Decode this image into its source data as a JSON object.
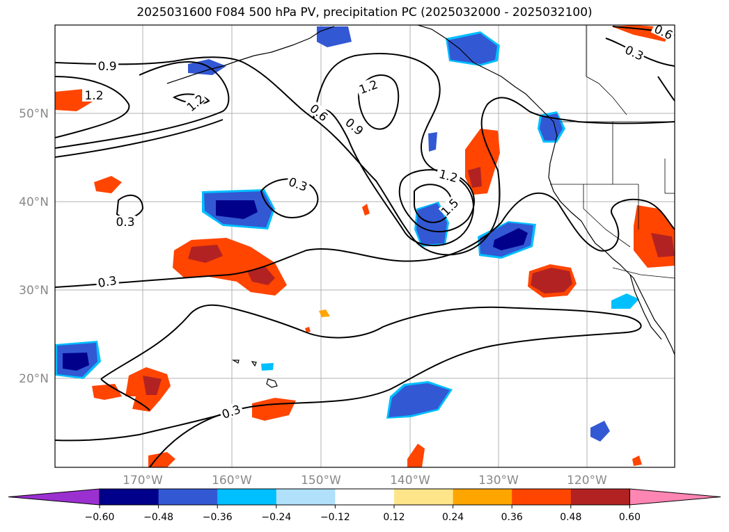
{
  "title": "2025031600 F084 500 hPa PV, precipitation PC (2025032000 - 2025032100)",
  "lat_ticks": [
    "50°N",
    "40°N",
    "30°N",
    "20°N"
  ],
  "lon_ticks": [
    "170°W",
    "160°W",
    "150°W",
    "140°W",
    "130°W",
    "120°W"
  ],
  "colorbar": {
    "ticks": [
      "−0.60",
      "−0.48",
      "−0.36",
      "−0.24",
      "−0.12",
      "0.12",
      "0.24",
      "0.36",
      "0.48",
      "0.60"
    ],
    "colors": [
      "#9b30d0",
      "#00008b",
      "#3358d4",
      "#00bfff",
      "#b0e0fa",
      "#ffffff",
      "#ffe58a",
      "#ffa500",
      "#ff4500",
      "#b22222",
      "#ff85b3"
    ]
  },
  "contour_labels": [
    "0.9",
    "1.2",
    "1.2",
    "0.6",
    "0.9",
    "1.2",
    "1.2",
    "1.5",
    "0.3",
    "0.3",
    "0.3",
    "0.3",
    "0.3",
    "0.6"
  ]
}
